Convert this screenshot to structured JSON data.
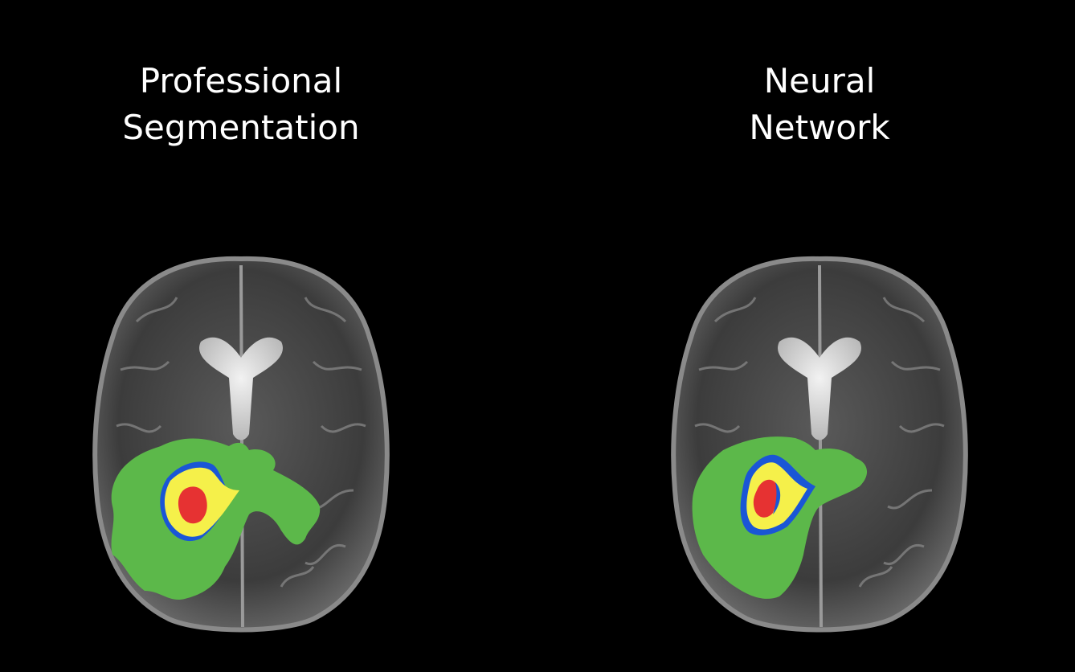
{
  "panels": [
    {
      "title_lines": [
        "Professional",
        "Segmentation"
      ]
    },
    {
      "title_lines": [
        "Neural",
        "Network"
      ]
    }
  ],
  "colors": {
    "background": "#000000",
    "title_text": "#ffffff",
    "edema": "#5cb84a",
    "enhancing": "#f5f04a",
    "necrotic_core": "#e63232",
    "non_enhancing": "#1a56d6"
  }
}
